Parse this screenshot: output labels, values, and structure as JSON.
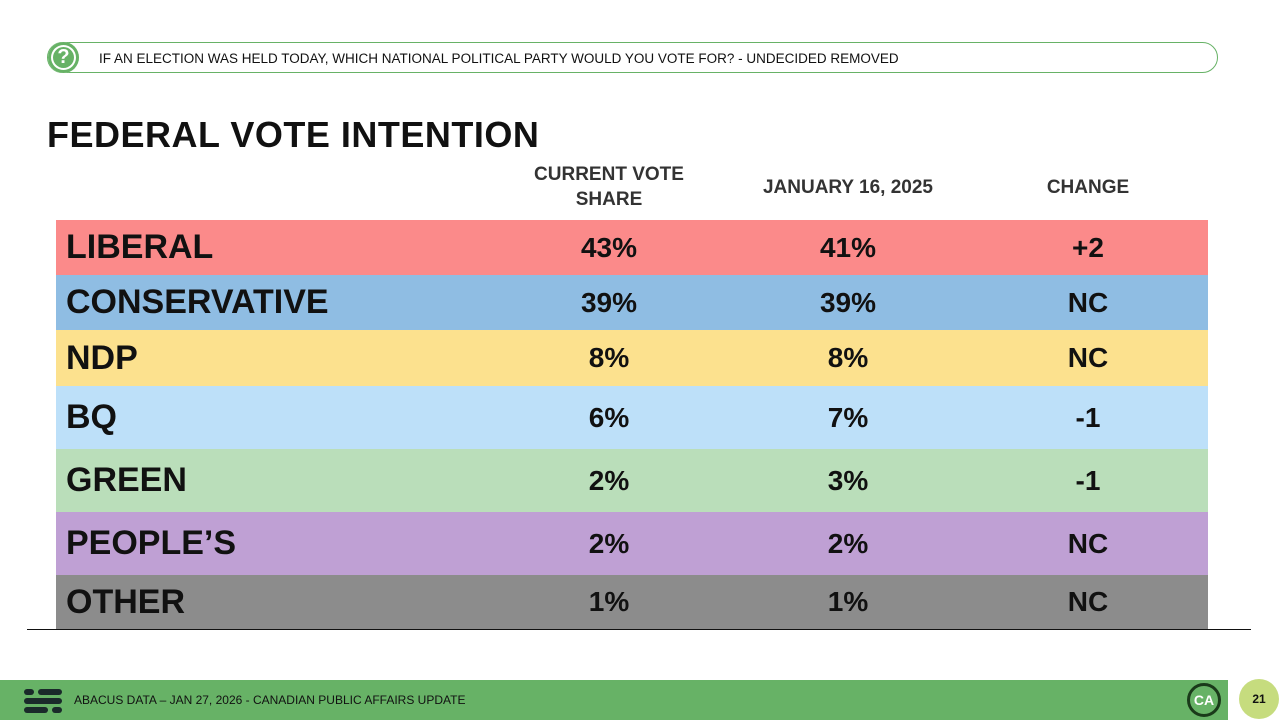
{
  "question": {
    "icon": "?",
    "text": "IF AN ELECTION WAS HELD TODAY, WHICH NATIONAL POLITICAL PARTY WOULD YOU VOTE FOR? - UNDECIDED REMOVED"
  },
  "title": "FEDERAL VOTE INTENTION",
  "table": {
    "headers": [
      "CURRENT VOTE SHARE",
      "JANUARY 16, 2025",
      "CHANGE"
    ],
    "rows": [
      [
        "LIBERAL",
        "43%",
        "41%",
        "+2"
      ],
      [
        "CONSERVATIVE",
        "39%",
        "39%",
        "NC"
      ],
      [
        "NDP",
        "8%",
        "8%",
        "NC"
      ],
      [
        "BQ",
        "6%",
        "7%",
        "-1"
      ],
      [
        "GREEN",
        "2%",
        "3%",
        "-1"
      ],
      [
        "PEOPLE’S",
        "2%",
        "2%",
        "NC"
      ],
      [
        "OTHER",
        "1%",
        "1%",
        "NC"
      ]
    ]
  },
  "footer": {
    "text": "ABACUS DATA – JAN 27, 2026 - CANADIAN PUBLIC AFFAIRS UPDATE",
    "logo": "CA",
    "page": "21"
  }
}
